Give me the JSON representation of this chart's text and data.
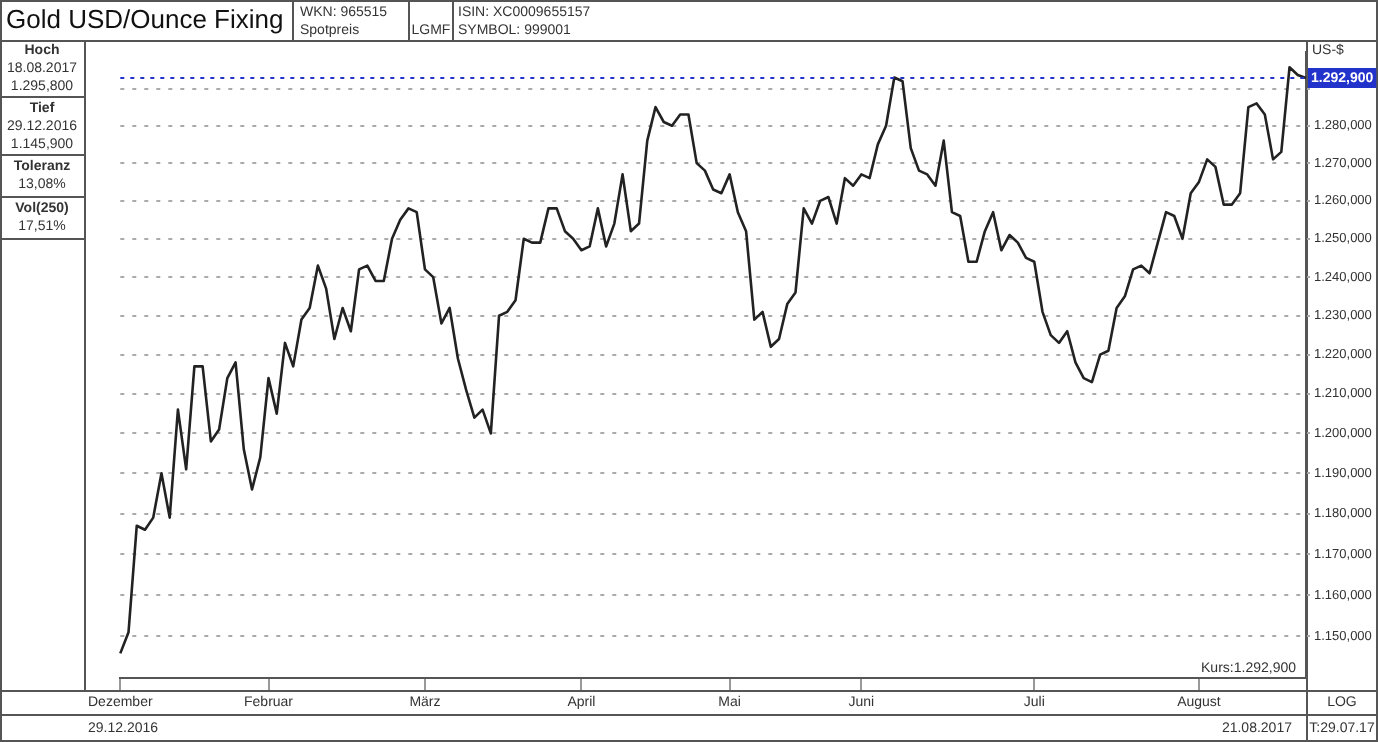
{
  "chart_data": {
    "type": "line",
    "title": "Gold USD/Ounce Fixing",
    "ylabel": "US-$",
    "log": true,
    "grid": "y",
    "legend": false,
    "marker": "none",
    "categories": [
      "Dezember",
      null,
      null,
      null,
      null,
      null,
      null,
      null,
      null,
      null,
      null,
      null,
      null,
      null,
      null,
      null,
      null,
      null,
      "Februar",
      null,
      null,
      null,
      null,
      null,
      null,
      null,
      null,
      null,
      null,
      null,
      null,
      null,
      null,
      null,
      null,
      null,
      null,
      "März",
      null,
      null,
      null,
      null,
      null,
      null,
      null,
      null,
      null,
      null,
      null,
      null,
      null,
      null,
      null,
      null,
      null,
      null,
      "April",
      null,
      null,
      null,
      null,
      null,
      null,
      null,
      null,
      null,
      null,
      null,
      null,
      null,
      null,
      null,
      null,
      null,
      "Mai",
      null,
      null,
      null,
      null,
      null,
      null,
      null,
      null,
      null,
      null,
      null,
      null,
      null,
      null,
      null,
      "Juni",
      null,
      null,
      null,
      null,
      null,
      null,
      null,
      null,
      null,
      null,
      null,
      null,
      null,
      null,
      null,
      null,
      null,
      null,
      null,
      null,
      "Juli",
      null,
      null,
      null,
      null,
      null,
      null,
      null,
      null,
      null,
      null,
      null,
      null,
      null,
      null,
      null,
      null,
      null,
      null,
      null,
      "August",
      null,
      null,
      null,
      null,
      null,
      null,
      null,
      null,
      null,
      null,
      null,
      null,
      null
    ],
    "ylim": [
      1140,
      1300
    ],
    "yticks": [
      {
        "value": 1150,
        "label": "1.150,000"
      },
      {
        "value": 1160,
        "label": "1.160,000"
      },
      {
        "value": 1170,
        "label": "1.170,000"
      },
      {
        "value": 1180,
        "label": "1.180,000"
      },
      {
        "value": 1190,
        "label": "1.190,000"
      },
      {
        "value": 1200,
        "label": "1.200,000"
      },
      {
        "value": 1210,
        "label": "1.210,000"
      },
      {
        "value": 1220,
        "label": "1.220,000"
      },
      {
        "value": 1230,
        "label": "1.230,000"
      },
      {
        "value": 1240,
        "label": "1.240,000"
      },
      {
        "value": 1250,
        "label": "1.250,000"
      },
      {
        "value": 1260,
        "label": "1.260,000"
      },
      {
        "value": 1270,
        "label": "1.270,000"
      },
      {
        "value": 1280,
        "label": "1.280,000"
      },
      {
        "value": 1290,
        "label": null
      }
    ],
    "series": [
      {
        "color": "#222222",
        "values": [
          1145.9,
          1151,
          1177,
          1176,
          1179,
          1190,
          1179,
          1206,
          1191,
          1217,
          1217,
          1198,
          1201,
          1214,
          1218,
          1196,
          1186,
          1194,
          1214,
          1205,
          1223,
          1217,
          1229,
          1232,
          1243,
          1237,
          1224,
          1232,
          1226,
          1242,
          1243,
          1239,
          1239,
          1250,
          1255,
          1258,
          1257,
          1242,
          1240,
          1228,
          1232,
          1219,
          1211,
          1204,
          1206,
          1200,
          1230,
          1231,
          1234,
          1250,
          1249,
          1249,
          1258,
          1258,
          1252,
          1250,
          1247,
          1248,
          1258,
          1248,
          1254,
          1267,
          1252,
          1254,
          1276,
          1285,
          1281,
          1280,
          1283,
          1283,
          1270,
          1268,
          1263,
          1262,
          1267,
          1257,
          1252,
          1229,
          1231,
          1222,
          1224,
          1233,
          1236,
          1258,
          1254,
          1260,
          1261,
          1254,
          1266,
          1264,
          1267,
          1266,
          1275,
          1280,
          1293,
          1292,
          1274,
          1268,
          1267,
          1264,
          1276,
          1257,
          1256,
          1244,
          1244,
          1252,
          1257,
          1247,
          1251,
          1249,
          1245,
          1244,
          1231,
          1225,
          1223,
          1226,
          1218,
          1214,
          1213,
          1220,
          1221,
          1232,
          1235,
          1242,
          1243,
          1241,
          1249,
          1257,
          1256,
          1250,
          1262,
          1265,
          1271,
          1269,
          1259,
          1259,
          1262,
          1285,
          1286,
          1283,
          1271,
          1273,
          1295.8,
          1293.7,
          1292.9
        ]
      }
    ],
    "ref_lines": [
      {
        "axis": "y",
        "value": 1292.9,
        "label": "1.292,900",
        "color": "#2233cc",
        "line_style": "dotted"
      }
    ],
    "annotations": [
      "WKN: 965515",
      "Spotpreis",
      "LGMF",
      "ISIN: XC0009655157",
      "SYMBOL: 999001",
      "Hoch",
      "18.08.2017",
      "1.295,800",
      "Tief",
      "29.12.2016",
      "1.145,900",
      "Toleranz",
      "13,08%",
      "Vol(250)",
      "17,51%",
      "Kurs:1.292,900",
      "LOG",
      "29.12.2016",
      "21.08.2017",
      "T:29.07.17"
    ]
  }
}
